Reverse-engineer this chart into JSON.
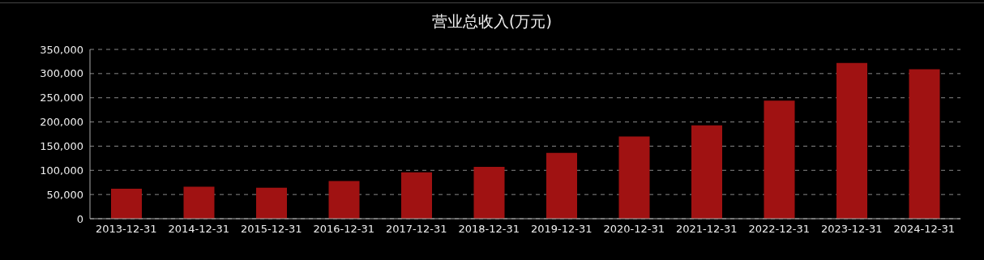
{
  "chart_data": {
    "type": "bar",
    "title": "营业总收入(万元)",
    "categories": [
      "2013-12-31",
      "2014-12-31",
      "2015-12-31",
      "2016-12-31",
      "2017-12-31",
      "2018-12-31",
      "2019-12-31",
      "2020-12-31",
      "2021-12-31",
      "2022-12-31",
      "2023-12-31",
      "2024-12-31"
    ],
    "values": [
      62000,
      66000,
      64000,
      78000,
      96000,
      107000,
      136000,
      170000,
      193000,
      244000,
      322000,
      309000
    ],
    "color": "#a01212",
    "ylim": [
      0,
      350000
    ],
    "yticks": [
      {
        "value": 0,
        "label": "0"
      },
      {
        "value": 50000,
        "label": "50,000"
      },
      {
        "value": 100000,
        "label": "100,000"
      },
      {
        "value": 150000,
        "label": "150,000"
      },
      {
        "value": 200000,
        "label": "200,000"
      },
      {
        "value": 250000,
        "label": "250,000"
      },
      {
        "value": 300000,
        "label": "300,000"
      },
      {
        "value": 350000,
        "label": "350,000"
      }
    ],
    "grid": "y"
  }
}
